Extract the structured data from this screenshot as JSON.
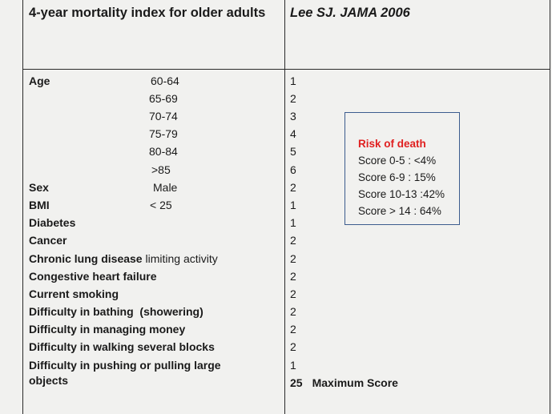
{
  "header": {
    "title": "4-year mortality index for older adults",
    "citation": "Lee SJ. JAMA 2006"
  },
  "age": {
    "label": "Age",
    "brackets": [
      {
        "range": "60-64",
        "score": "1"
      },
      {
        "range": "65-69",
        "score": "2"
      },
      {
        "range": "70-74",
        "score": "3"
      },
      {
        "range": "75-79",
        "score": "4"
      },
      {
        "range": "80-84",
        "score": "5"
      },
      {
        "range": ">85",
        "score": "6"
      }
    ]
  },
  "sex": {
    "label": "Sex",
    "value": "Male",
    "score": "2"
  },
  "bmi": {
    "label": "BMI",
    "value": "< 25",
    "score": "1"
  },
  "factors": [
    {
      "label": "Diabetes",
      "score": "1"
    },
    {
      "label": "Cancer",
      "score": "2"
    },
    {
      "label": "Chronic lung disease",
      "extra": " limiting activity",
      "score": "2"
    },
    {
      "label": "Congestive heart failure",
      "score": "2"
    },
    {
      "label": "Current smoking",
      "score": "2"
    },
    {
      "label": "Difficulty in bathing  (showering)",
      "score": "2"
    },
    {
      "label": "Difficulty in managing money",
      "score": "2"
    },
    {
      "label": "Difficulty in walking several blocks",
      "score": "2"
    },
    {
      "label": "Difficulty in pushing or pulling large",
      "label_line2": "objects",
      "score": "1"
    }
  ],
  "total": {
    "score": "25",
    "label": "Maximum Score"
  },
  "risk": {
    "title": "Risk of death",
    "lines": [
      "Score 0-5 : <4%",
      "Score 6-9 : 15%",
      "Score 10-13 :42%",
      "Score > 14 : 64%"
    ]
  },
  "colors": {
    "risk_title": "#e02020",
    "box_border": "#3c5c8e",
    "background": "#f1f1ef"
  }
}
